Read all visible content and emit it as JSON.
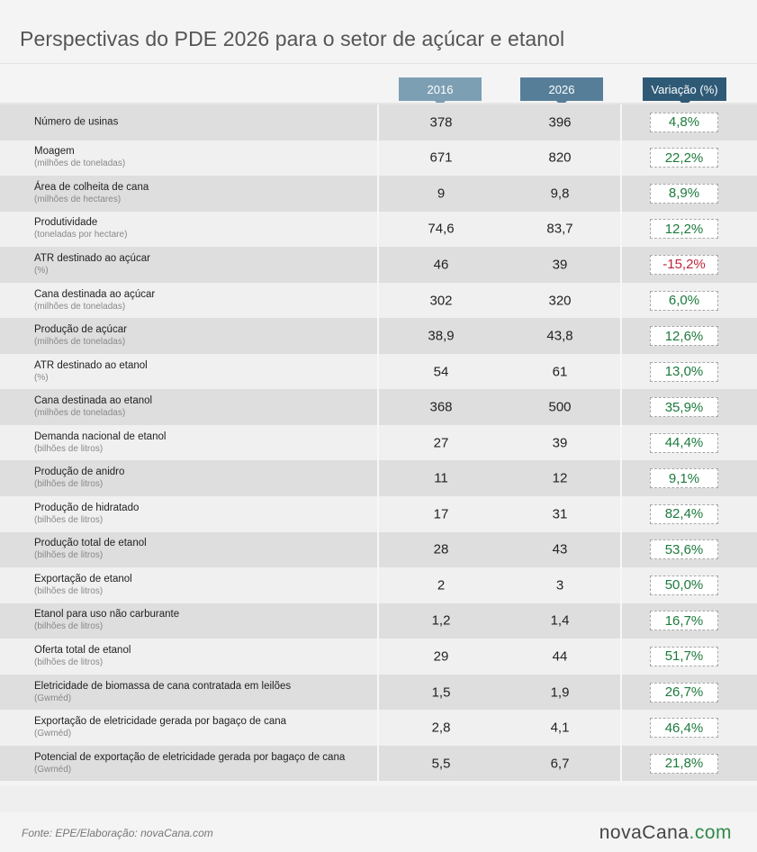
{
  "title": "Perspectivas do PDE 2026 para o setor de açúcar e etanol",
  "columns": {
    "y1": "2016",
    "y2": "2026",
    "var": "Variação (%)"
  },
  "colors": {
    "positive": "#1c7a3c",
    "negative": "#c0233a",
    "h2016": "#7c9fb3",
    "h2026": "#567e99",
    "hvar": "#2f5a76"
  },
  "rows": [
    {
      "label": "Número de usinas",
      "unit": "",
      "v2016": "378",
      "v2026": "396",
      "var": "4,8%",
      "sign": "positive"
    },
    {
      "label": "Moagem",
      "unit": "(milhões de toneladas)",
      "v2016": "671",
      "v2026": "820",
      "var": "22,2%",
      "sign": "positive"
    },
    {
      "label": "Área de colheita de cana",
      "unit": "(milhões de hectares)",
      "v2016": "9",
      "v2026": "9,8",
      "var": "8,9%",
      "sign": "positive"
    },
    {
      "label": "Produtividade",
      "unit": "(toneladas por hectare)",
      "v2016": "74,6",
      "v2026": "83,7",
      "var": "12,2%",
      "sign": "positive"
    },
    {
      "label": "ATR destinado ao açúcar",
      "unit": "(%)",
      "v2016": "46",
      "v2026": "39",
      "var": "-15,2%",
      "sign": "negative"
    },
    {
      "label": "Cana destinada ao açúcar",
      "unit": "(milhões de toneladas)",
      "v2016": "302",
      "v2026": "320",
      "var": "6,0%",
      "sign": "positive"
    },
    {
      "label": "Produção de açúcar",
      "unit": "(milhões de toneladas)",
      "v2016": "38,9",
      "v2026": "43,8",
      "var": "12,6%",
      "sign": "positive"
    },
    {
      "label": "ATR destinado ao etanol",
      "unit": "(%)",
      "v2016": "54",
      "v2026": "61",
      "var": "13,0%",
      "sign": "positive"
    },
    {
      "label": "Cana destinada ao etanol",
      "unit": "(milhões de toneladas)",
      "v2016": "368",
      "v2026": "500",
      "var": "35,9%",
      "sign": "positive"
    },
    {
      "label": "Demanda nacional de etanol",
      "unit": "(bilhões de litros)",
      "v2016": "27",
      "v2026": "39",
      "var": "44,4%",
      "sign": "positive"
    },
    {
      "label": "Produção de anidro",
      "unit": "(bilhões de litros)",
      "v2016": "11",
      "v2026": "12",
      "var": "9,1%",
      "sign": "positive"
    },
    {
      "label": "Produção de hidratado",
      "unit": "(bilhões de litros)",
      "v2016": "17",
      "v2026": "31",
      "var": "82,4%",
      "sign": "positive"
    },
    {
      "label": "Produção total de etanol",
      "unit": "(bilhões de litros)",
      "v2016": "28",
      "v2026": "43",
      "var": "53,6%",
      "sign": "positive"
    },
    {
      "label": "Exportação de etanol",
      "unit": "(bilhões de litros)",
      "v2016": "2",
      "v2026": "3",
      "var": "50,0%",
      "sign": "positive"
    },
    {
      "label": "Etanol para uso não carburante",
      "unit": "(bilhões de litros)",
      "v2016": "1,2",
      "v2026": "1,4",
      "var": "16,7%",
      "sign": "positive"
    },
    {
      "label": "Oferta total de etanol",
      "unit": "(bilhões de litros)",
      "v2016": "29",
      "v2026": "44",
      "var": "51,7%",
      "sign": "positive"
    },
    {
      "label": "Eletricidade de biomassa de cana contratada em leilões",
      "unit": "(Gwméd)",
      "v2016": "1,5",
      "v2026": "1,9",
      "var": "26,7%",
      "sign": "positive"
    },
    {
      "label": "Exportação de eletricidade gerada por bagaço de cana",
      "unit": "(Gwméd)",
      "v2016": "2,8",
      "v2026": "4,1",
      "var": "46,4%",
      "sign": "positive"
    },
    {
      "label": "Potencial de exportação de eletricidade gerada por bagaço de cana",
      "unit": "(Gwméd)",
      "v2016": "5,5",
      "v2026": "6,7",
      "var": "21,8%",
      "sign": "positive"
    }
  ],
  "footer": {
    "source": "Fonte: EPE/Elaboração: novaCana.com",
    "logo_main": "novaCana",
    "logo_suffix": ".com"
  }
}
